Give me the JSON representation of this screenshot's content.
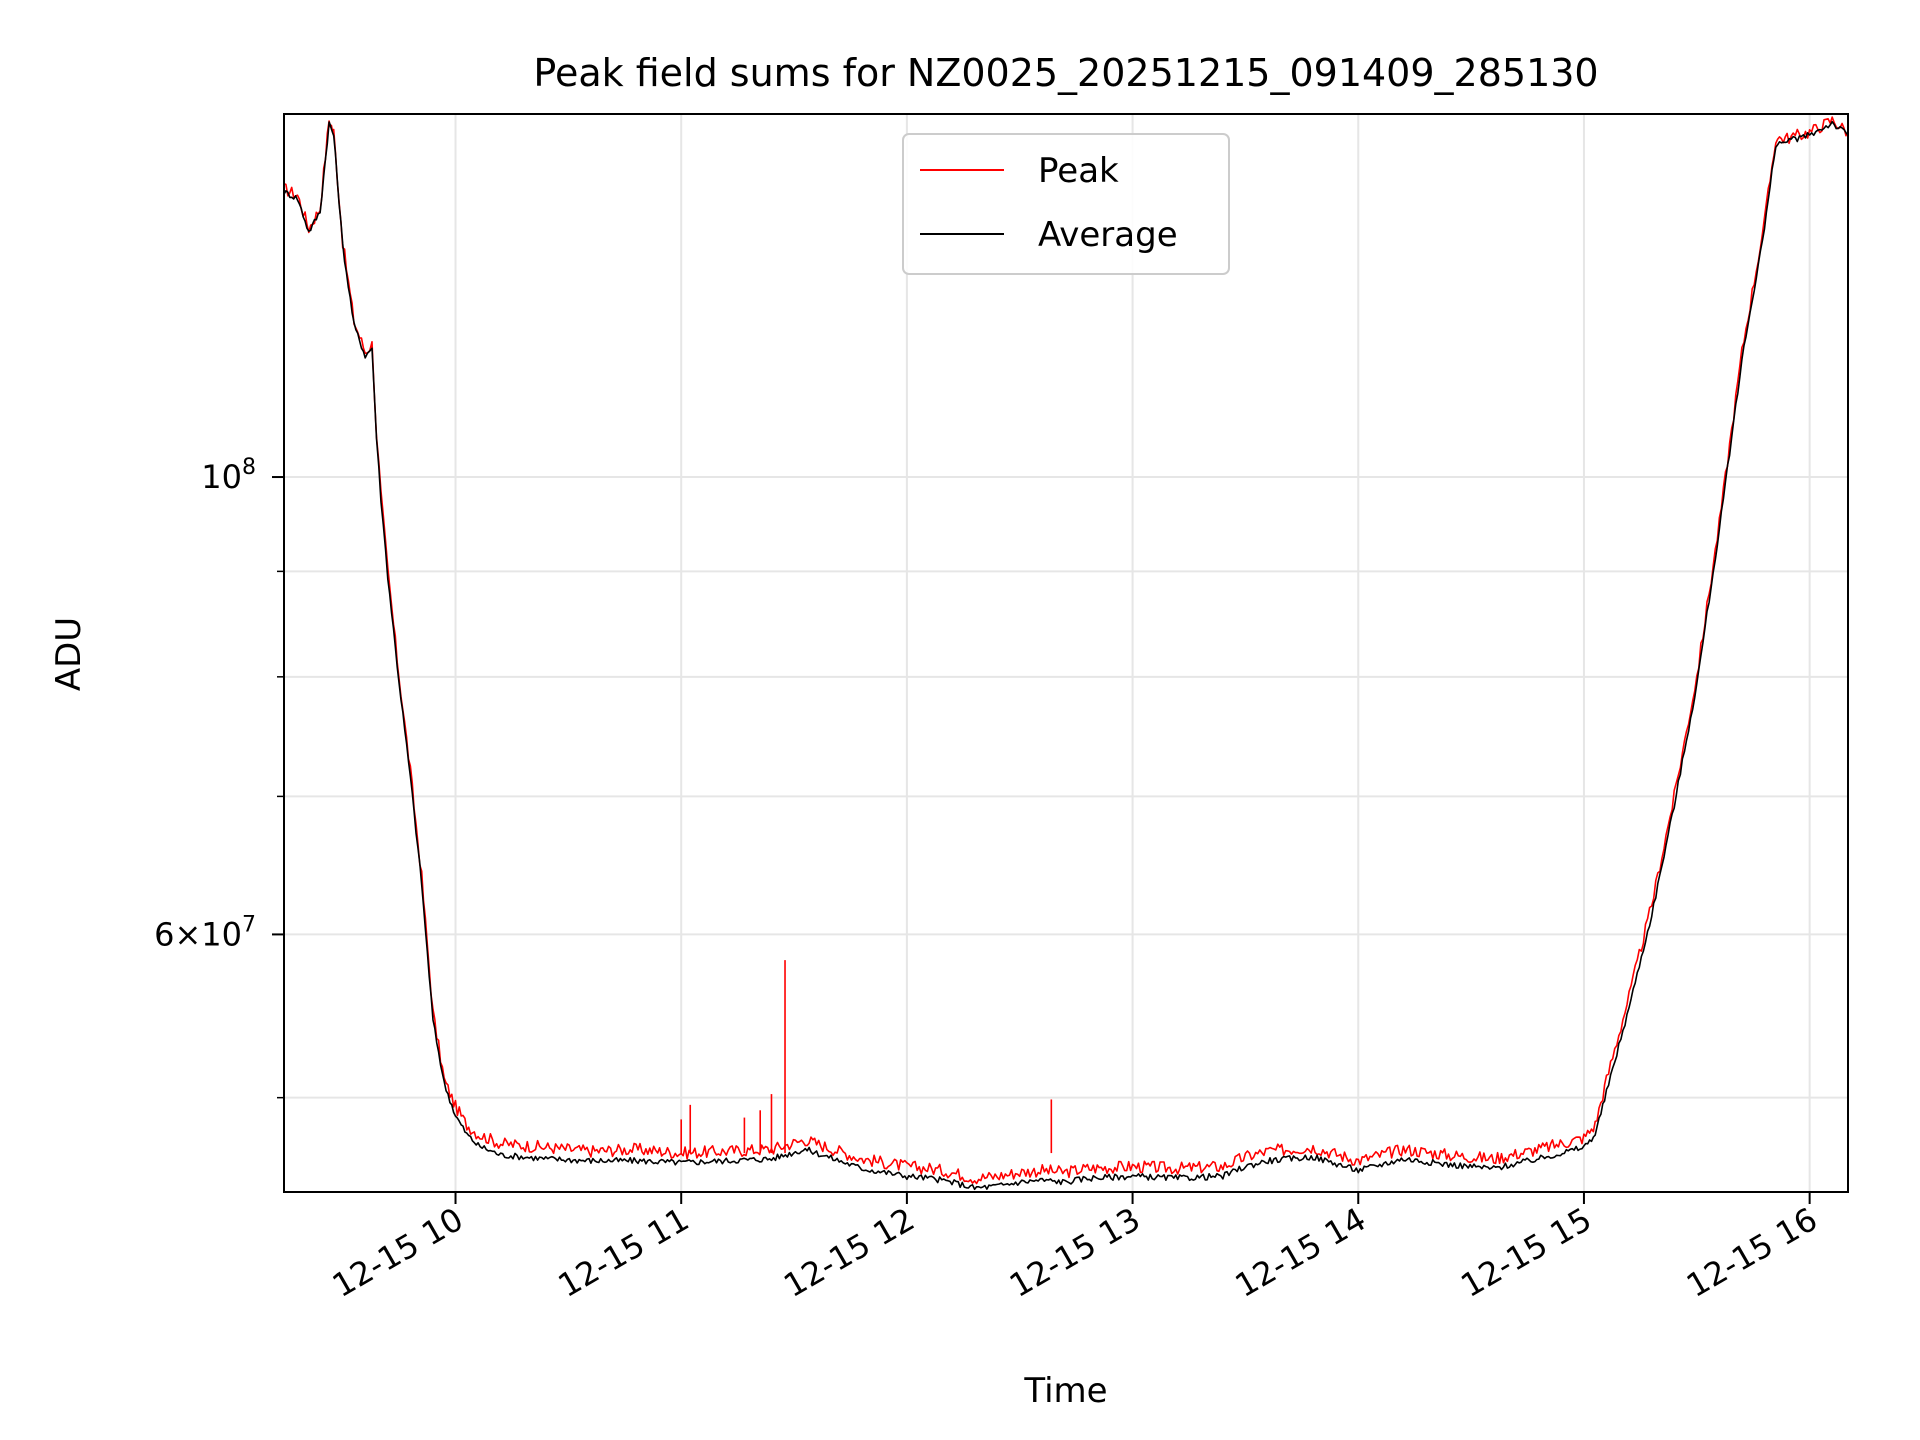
{
  "chart_data": {
    "type": "line",
    "title": "Peak field sums for NZ0025_20251215_091409_285130",
    "xlabel": "Time",
    "ylabel": "ADU",
    "yscale": "log",
    "xlim_hours": [
      9.24,
      16.17
    ],
    "ylim": [
      45000000,
      150000000
    ],
    "grid": true,
    "legend_position": "upper-center",
    "x_ticks": [
      {
        "hour": 10,
        "label": "12-15 10"
      },
      {
        "hour": 11,
        "label": "12-15 11"
      },
      {
        "hour": 12,
        "label": "12-15 12"
      },
      {
        "hour": 13,
        "label": "12-15 13"
      },
      {
        "hour": 14,
        "label": "12-15 14"
      },
      {
        "hour": 15,
        "label": "12-15 15"
      },
      {
        "hour": 16,
        "label": "12-15 16"
      }
    ],
    "y_major_ticks": [
      {
        "value": 100000000,
        "mantissa": "",
        "base": "10",
        "exp": "8"
      },
      {
        "value": 60000000,
        "mantissa": "6×",
        "base": "10",
        "exp": "7"
      }
    ],
    "y_minor_ticks": [
      50000000,
      70000000,
      80000000,
      90000000
    ],
    "series": [
      {
        "name": "Peak",
        "color": "#ff0000",
        "hours": [
          9.24,
          9.3,
          9.35,
          9.4,
          9.44,
          9.45,
          9.46,
          9.5,
          9.55,
          9.6,
          9.63,
          9.65,
          9.67,
          9.7,
          9.75,
          9.8,
          9.85,
          9.9,
          9.95,
          10.0,
          10.05,
          10.1,
          10.2,
          10.3,
          10.4,
          10.6,
          10.8,
          11.0,
          11.2,
          11.4,
          11.55,
          11.6,
          11.7,
          11.8,
          11.9,
          12.0,
          12.1,
          12.2,
          12.3,
          12.4,
          12.5,
          12.6,
          12.7,
          12.8,
          13.0,
          13.2,
          13.4,
          13.5,
          13.6,
          13.8,
          14.0,
          14.2,
          14.4,
          14.6,
          14.8,
          15.0,
          15.05,
          15.1,
          15.2,
          15.3,
          15.4,
          15.5,
          15.6,
          15.7,
          15.8,
          15.85,
          15.9,
          16.0,
          16.1,
          16.17
        ],
        "values": [
          138000000,
          137000000,
          132000000,
          135000000,
          149000000,
          148000000,
          147000000,
          130000000,
          119000000,
          115000000,
          116000000,
          105000000,
          98000000,
          90000000,
          80000000,
          72000000,
          64000000,
          55000000,
          51000000,
          49500000,
          48500000,
          48000000,
          47500000,
          47400000,
          47300000,
          47100000,
          47200000,
          47000000,
          47100000,
          47200000,
          47700000,
          47500000,
          47100000,
          46700000,
          46500000,
          46300000,
          46200000,
          46000000,
          45700000,
          45800000,
          46000000,
          46100000,
          46000000,
          46200000,
          46300000,
          46200000,
          46300000,
          46800000,
          47100000,
          47300000,
          46600000,
          47200000,
          46900000,
          46700000,
          47200000,
          47800000,
          48500000,
          51000000,
          56000000,
          62000000,
          70000000,
          80000000,
          95000000,
          115000000,
          133000000,
          146000000,
          146000000,
          147000000,
          149000000,
          147000000
        ],
        "spikes": [
          {
            "hour": 11.0,
            "value": 48800000
          },
          {
            "hour": 11.04,
            "value": 49600000
          },
          {
            "hour": 11.28,
            "value": 48900000
          },
          {
            "hour": 11.35,
            "value": 49300000
          },
          {
            "hour": 11.4,
            "value": 50200000
          },
          {
            "hour": 11.46,
            "value": 58300000
          },
          {
            "hour": 12.64,
            "value": 49900000
          }
        ]
      },
      {
        "name": "Average",
        "color": "#000000",
        "hours": [
          9.24,
          9.3,
          9.35,
          9.4,
          9.44,
          9.45,
          9.46,
          9.5,
          9.55,
          9.6,
          9.63,
          9.65,
          9.67,
          9.7,
          9.75,
          9.8,
          9.85,
          9.9,
          9.95,
          10.0,
          10.05,
          10.1,
          10.2,
          10.3,
          10.4,
          10.6,
          10.8,
          11.0,
          11.2,
          11.4,
          11.55,
          11.6,
          11.7,
          11.8,
          11.9,
          12.0,
          12.1,
          12.2,
          12.3,
          12.4,
          12.5,
          12.6,
          12.7,
          12.8,
          13.0,
          13.2,
          13.4,
          13.5,
          13.6,
          13.8,
          14.0,
          14.2,
          14.4,
          14.6,
          14.8,
          15.0,
          15.05,
          15.1,
          15.2,
          15.3,
          15.4,
          15.5,
          15.6,
          15.7,
          15.8,
          15.85,
          15.9,
          16.0,
          16.1,
          16.17
        ],
        "values": [
          137500000,
          136500000,
          131500000,
          134500000,
          148500000,
          147500000,
          146500000,
          129500000,
          118500000,
          114500000,
          115500000,
          104500000,
          97500000,
          89500000,
          79500000,
          71500000,
          63500000,
          54500000,
          50800000,
          49000000,
          48000000,
          47400000,
          46900000,
          46800000,
          46700000,
          46600000,
          46600000,
          46500000,
          46600000,
          46700000,
          47200000,
          47000000,
          46600000,
          46200000,
          46000000,
          45800000,
          45700000,
          45500000,
          45200000,
          45300000,
          45500000,
          45600000,
          45500000,
          45700000,
          45800000,
          45700000,
          45800000,
          46300000,
          46600000,
          46800000,
          46100000,
          46700000,
          46400000,
          46200000,
          46700000,
          47300000,
          48000000,
          50300000,
          55300000,
          61300000,
          69300000,
          79300000,
          94300000,
          114000000,
          132000000,
          145000000,
          145500000,
          146500000,
          148500000,
          146500000
        ]
      }
    ]
  }
}
